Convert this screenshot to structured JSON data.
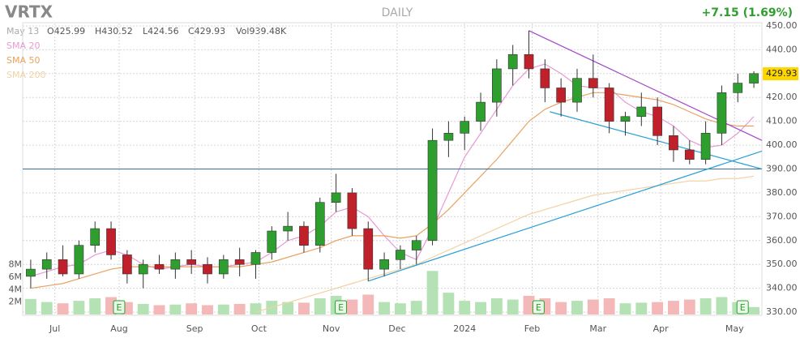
{
  "chart_data": {
    "type": "candlestick",
    "title": "VRTX",
    "subtitle": "DAILY",
    "change": "+7.15 (1.69%)",
    "quote": {
      "date": "May 13",
      "open": "O425.99",
      "high": "H430.52",
      "low": "L424.56",
      "close": "C429.93",
      "volume": "Vol939.48K"
    },
    "last_price": {
      "value": 429.93,
      "label": "429.93"
    },
    "xlim": [
      0,
      46
    ],
    "xticks": [
      {
        "value": 2,
        "label": "Jul"
      },
      {
        "value": 6,
        "label": "Aug"
      },
      {
        "value": 10.7,
        "label": "Sep"
      },
      {
        "value": 14.7,
        "label": "Oct"
      },
      {
        "value": 19.2,
        "label": "Nov"
      },
      {
        "value": 23.3,
        "label": "Dec"
      },
      {
        "value": 27.5,
        "label": "2024"
      },
      {
        "value": 31.7,
        "label": "Feb"
      },
      {
        "value": 35.8,
        "label": "Mar"
      },
      {
        "value": 39.7,
        "label": "Apr"
      },
      {
        "value": 44.3,
        "label": "May"
      }
    ],
    "ylim": [
      329,
      451
    ],
    "yticks": [
      {
        "value": 330,
        "label": "330.00"
      },
      {
        "value": 340,
        "label": "340.00"
      },
      {
        "value": 350,
        "label": "350.00"
      },
      {
        "value": 360,
        "label": "360.00"
      },
      {
        "value": 370,
        "label": "370.00"
      },
      {
        "value": 380,
        "label": "380.00"
      },
      {
        "value": 390,
        "label": "390.00"
      },
      {
        "value": 400,
        "label": "400.00"
      },
      {
        "value": 410,
        "label": "410.00"
      },
      {
        "value": 420,
        "label": "420.00"
      },
      {
        "value": 430,
        "label": "430.00"
      },
      {
        "value": 440,
        "label": "440.00"
      },
      {
        "value": 450,
        "label": "450.00"
      }
    ],
    "vlim": [
      0,
      8.6
    ],
    "vticks": [
      {
        "value": 2,
        "label": "2M"
      },
      {
        "value": 4,
        "label": "4M"
      },
      {
        "value": 6,
        "label": "6M"
      },
      {
        "value": 8,
        "label": "8M"
      }
    ],
    "grid": true,
    "up_color": "#2e9e2e",
    "down_color": "#c0202a",
    "vol_up_color": "#b4e2b4",
    "vol_down_color": "#f4b8b8",
    "open": [
      345,
      348,
      352,
      346,
      358,
      365,
      354,
      346,
      350,
      348,
      352,
      350,
      346,
      352,
      350,
      355,
      364,
      366,
      358,
      376,
      380,
      365,
      348,
      352,
      356,
      360,
      402,
      405,
      410,
      418,
      432,
      438,
      432,
      424,
      418,
      428,
      424,
      410,
      412,
      416,
      404,
      398,
      394,
      405,
      422,
      426
    ],
    "high": [
      352,
      355,
      358,
      360,
      368,
      368,
      356,
      352,
      354,
      355,
      356,
      353,
      354,
      357,
      356,
      366,
      372,
      368,
      378,
      388,
      382,
      368,
      355,
      358,
      362,
      407,
      410,
      412,
      422,
      436,
      442,
      448,
      436,
      428,
      432,
      438,
      426,
      414,
      422,
      420,
      408,
      402,
      410,
      425,
      430,
      431
    ],
    "low": [
      340,
      344,
      345,
      344,
      355,
      352,
      342,
      340,
      346,
      344,
      346,
      342,
      344,
      345,
      344,
      352,
      360,
      355,
      355,
      372,
      362,
      343,
      345,
      348,
      350,
      358,
      395,
      398,
      406,
      412,
      425,
      428,
      418,
      412,
      414,
      420,
      405,
      404,
      408,
      400,
      393,
      392,
      392,
      400,
      418,
      424
    ],
    "close": [
      348,
      352,
      346,
      358,
      365,
      354,
      346,
      350,
      348,
      352,
      350,
      346,
      352,
      350,
      355,
      364,
      366,
      358,
      376,
      380,
      365,
      348,
      352,
      356,
      360,
      402,
      405,
      410,
      418,
      432,
      438,
      432,
      424,
      418,
      428,
      424,
      410,
      412,
      416,
      404,
      398,
      394,
      405,
      422,
      426,
      430
    ],
    "volume": [
      2.5,
      2.0,
      1.8,
      2.2,
      2.6,
      2.8,
      2.0,
      1.7,
      1.5,
      1.6,
      1.8,
      1.5,
      1.6,
      1.7,
      1.8,
      2.2,
      2.0,
      1.9,
      2.6,
      3.0,
      2.4,
      3.2,
      2.0,
      1.8,
      2.2,
      7.0,
      3.5,
      2.2,
      2.0,
      2.6,
      2.4,
      3.0,
      2.6,
      2.0,
      2.2,
      2.4,
      2.6,
      1.8,
      1.9,
      2.0,
      2.2,
      2.4,
      2.6,
      2.8,
      2.0,
      1.2
    ],
    "series": [
      {
        "name": "SMA 20",
        "color": "#e79ad4",
        "values": [
          345,
          347,
          349,
          350,
          354,
          356,
          354,
          350,
          348,
          349,
          350,
          349,
          349,
          350,
          351,
          355,
          360,
          362,
          366,
          372,
          374,
          370,
          362,
          355,
          352,
          365,
          380,
          395,
          405,
          415,
          425,
          432,
          434,
          430,
          425,
          424,
          424,
          418,
          414,
          412,
          408,
          402,
          399,
          400,
          405,
          412
        ]
      },
      {
        "name": "SMA 50",
        "color": "#e9a261",
        "values": [
          340,
          341,
          342,
          344,
          346,
          348,
          349,
          349,
          349,
          349,
          349,
          349,
          349,
          349,
          350,
          351,
          353,
          355,
          357,
          360,
          362,
          362,
          362,
          361,
          362,
          367,
          373,
          380,
          387,
          394,
          402,
          410,
          415,
          418,
          420,
          422,
          422,
          421,
          420,
          419,
          417,
          414,
          411,
          409,
          408,
          408
        ]
      },
      {
        "name": "SMA 200",
        "color": "#f2d2a4",
        "values": [
          null,
          null,
          null,
          null,
          null,
          null,
          null,
          null,
          null,
          null,
          null,
          null,
          null,
          null,
          330,
          332,
          334,
          336,
          338,
          340,
          342,
          344,
          346,
          348,
          350,
          353,
          356,
          359,
          362,
          365,
          368,
          371,
          373,
          375,
          377,
          379,
          380,
          381,
          382,
          383,
          384,
          385,
          385,
          386,
          386,
          387
        ]
      }
    ],
    "hlines": [
      {
        "value": 390,
        "color": "#3a6e9a"
      }
    ],
    "trendlines": [
      {
        "x": [
          21.5,
          46
        ],
        "y": [
          343,
          397.5
        ],
        "color": "#2a9fd6"
      },
      {
        "x": [
          32.8,
          46
        ],
        "y": [
          414,
          390
        ],
        "color": "#2a9fd6"
      },
      {
        "x": [
          31.5,
          46
        ],
        "y": [
          448,
          402
        ],
        "color": "#a348c8"
      }
    ],
    "events": [
      {
        "x": 6,
        "label": "E"
      },
      {
        "x": 19.8,
        "label": "E"
      },
      {
        "x": 32.1,
        "label": "E"
      },
      {
        "x": 44.8,
        "label": "E"
      }
    ]
  }
}
